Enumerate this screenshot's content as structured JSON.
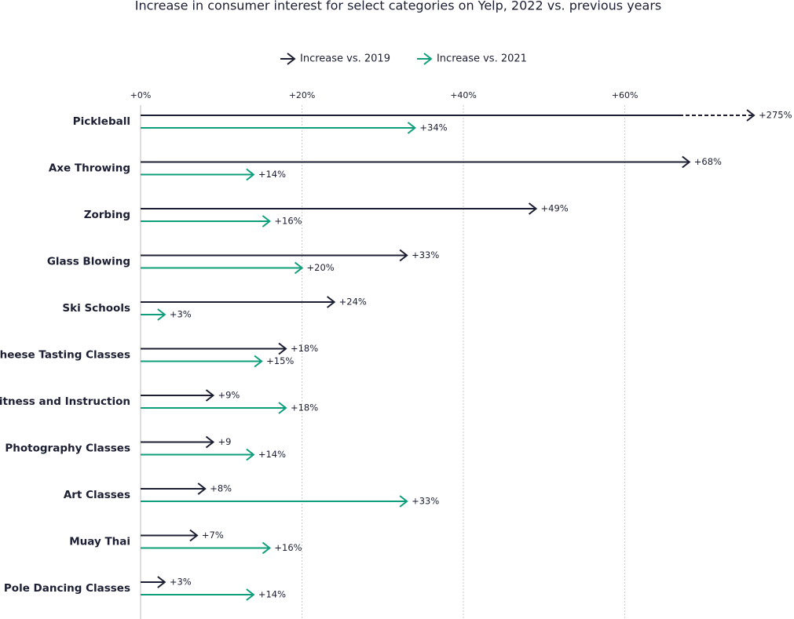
{
  "chart_data": {
    "type": "arrow-bar",
    "title": "Increase in consumer interest for select categories on Yelp, 2022 vs. previous years",
    "categories": [
      "Pickleball",
      "Axe Throwing",
      "Zorbing",
      "Glass Blowing",
      "Ski Schools",
      "Cheese Tasting Classes",
      "Fitness and Instruction",
      "Photography Classes",
      "Art Classes",
      "Muay Thai",
      "Pole Dancing Classes"
    ],
    "series": [
      {
        "name": "Increase vs. 2019",
        "color": "#1c1f33",
        "values": [
          275,
          68,
          49,
          33,
          24,
          18,
          9,
          9,
          8,
          7,
          3
        ],
        "value_labels": [
          "+275%",
          "+68%",
          "+49%",
          "+33%",
          "+24%",
          "+18%",
          "+9%",
          "+9",
          "+8%",
          "+7%",
          "+3%"
        ]
      },
      {
        "name": "Increase vs. 2021",
        "color": "#0f9e7b",
        "values": [
          34,
          14,
          16,
          20,
          3,
          15,
          18,
          14,
          33,
          16,
          14
        ],
        "value_labels": [
          "+34%",
          "+14%",
          "+16%",
          "+20%",
          "+3%",
          "+15%",
          "+18%",
          "+14%",
          "+33%",
          "+16%",
          "+14%"
        ]
      }
    ],
    "xlim": [
      0,
      76
    ],
    "xticks": [
      {
        "value": 0,
        "label": "+0%"
      },
      {
        "value": 20,
        "label": "+20%"
      },
      {
        "value": 40,
        "label": "+40%"
      },
      {
        "value": 60,
        "label": "+60%"
      }
    ],
    "grid": true,
    "legend": "top"
  }
}
